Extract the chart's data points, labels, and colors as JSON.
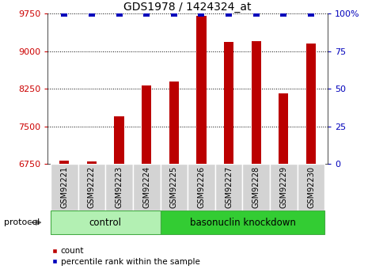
{
  "title": "GDS1978 / 1424324_at",
  "samples": [
    "GSM92221",
    "GSM92222",
    "GSM92223",
    "GSM92224",
    "GSM92225",
    "GSM92226",
    "GSM92227",
    "GSM92228",
    "GSM92229",
    "GSM92230"
  ],
  "counts": [
    6820,
    6790,
    7700,
    8320,
    8390,
    9710,
    9180,
    9200,
    8160,
    9150
  ],
  "percentile_ranks": [
    100,
    100,
    100,
    100,
    100,
    100,
    100,
    100,
    100,
    100
  ],
  "ylim_left": [
    6750,
    9750
  ],
  "ylim_right": [
    0,
    100
  ],
  "yticks_left": [
    6750,
    7500,
    8250,
    9000,
    9750
  ],
  "yticks_right": [
    0,
    25,
    50,
    75,
    100
  ],
  "ytick_right_labels": [
    "0",
    "25",
    "50",
    "75",
    "100%"
  ],
  "bar_color": "#bb0000",
  "dot_color": "#0000bb",
  "control_label": "control",
  "knockdown_label": "basonuclin knockdown",
  "protocol_label": "protocol",
  "legend_count_label": "count",
  "legend_pct_label": "percentile rank within the sample",
  "bg_color": "#ffffff",
  "grid_color": "#888888",
  "label_color_left": "#cc0000",
  "label_color_right": "#0000bb",
  "bar_width": 0.35,
  "dot_size": 30,
  "control_bg": "#b3f0b3",
  "knockdown_bg": "#33cc33",
  "sample_bg": "#d3d3d3",
  "n_control": 4,
  "n_knockdown": 6
}
